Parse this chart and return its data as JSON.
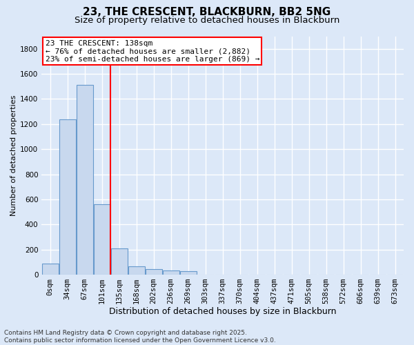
{
  "title": "23, THE CRESCENT, BLACKBURN, BB2 5NG",
  "subtitle": "Size of property relative to detached houses in Blackburn",
  "xlabel": "Distribution of detached houses by size in Blackburn",
  "ylabel": "Number of detached properties",
  "categories": [
    "0sqm",
    "34sqm",
    "67sqm",
    "101sqm",
    "135sqm",
    "168sqm",
    "202sqm",
    "236sqm",
    "269sqm",
    "303sqm",
    "337sqm",
    "370sqm",
    "404sqm",
    "437sqm",
    "471sqm",
    "505sqm",
    "538sqm",
    "572sqm",
    "606sqm",
    "639sqm",
    "673sqm"
  ],
  "values": [
    90,
    1235,
    1515,
    560,
    210,
    65,
    45,
    35,
    27,
    0,
    0,
    0,
    0,
    0,
    0,
    0,
    0,
    0,
    0,
    0,
    0
  ],
  "bar_color": "#c8d8ee",
  "bar_edge_color": "#6699cc",
  "vline_color": "red",
  "vline_x_idx": 3.5,
  "annotation_text": "23 THE CRESCENT: 138sqm\n← 76% of detached houses are smaller (2,882)\n23% of semi-detached houses are larger (869) →",
  "annotation_box_color": "white",
  "annotation_box_edge_color": "red",
  "ylim": [
    0,
    1900
  ],
  "yticks": [
    0,
    200,
    400,
    600,
    800,
    1000,
    1200,
    1400,
    1600,
    1800
  ],
  "bg_color": "#dce8f8",
  "grid_color": "white",
  "footnote": "Contains HM Land Registry data © Crown copyright and database right 2025.\nContains public sector information licensed under the Open Government Licence v3.0.",
  "title_fontsize": 11,
  "subtitle_fontsize": 9.5,
  "xlabel_fontsize": 9,
  "ylabel_fontsize": 8,
  "tick_fontsize": 7.5,
  "annot_fontsize": 8,
  "footnote_fontsize": 6.5
}
